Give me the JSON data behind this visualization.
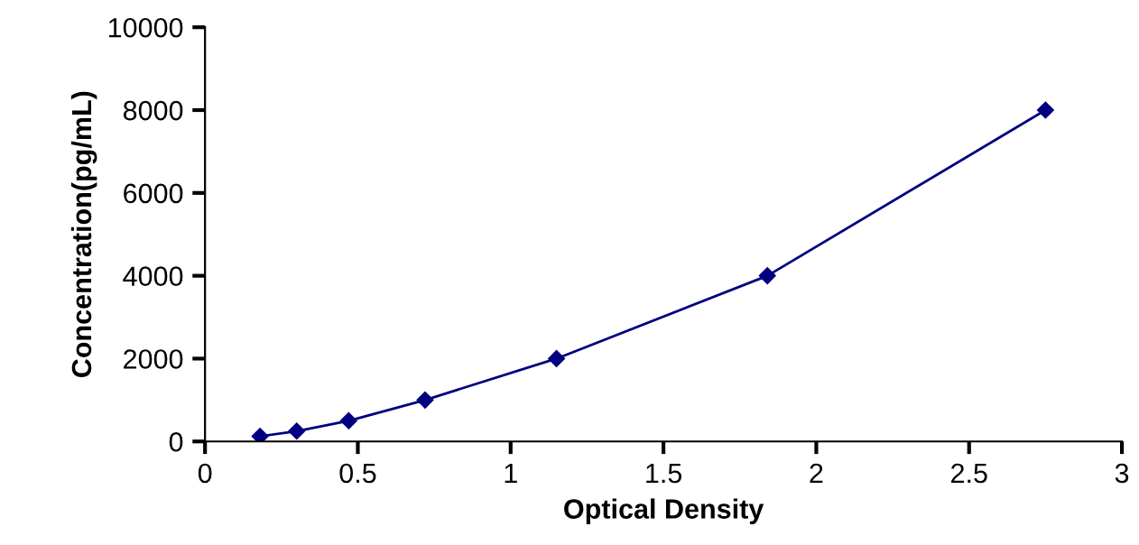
{
  "chart_data": {
    "type": "line",
    "xlabel": "Optical Density",
    "ylabel": "Concentration(pg/mL)",
    "x": [
      0.18,
      0.3,
      0.47,
      0.72,
      1.15,
      1.84,
      2.75
    ],
    "series": [
      {
        "color": "#000080",
        "values": [
          125,
          250,
          500,
          1000,
          2000,
          4000,
          8000
        ]
      }
    ],
    "xlim": [
      0,
      3
    ],
    "xticks": [
      0,
      0.5,
      1,
      1.5,
      2,
      2.5,
      3
    ],
    "ylim": [
      0,
      10000
    ],
    "yticks": [
      0,
      2000,
      4000,
      6000,
      8000,
      10000
    ],
    "marker": "diamond",
    "line_style": "solid",
    "grid": false,
    "legend": false
  }
}
